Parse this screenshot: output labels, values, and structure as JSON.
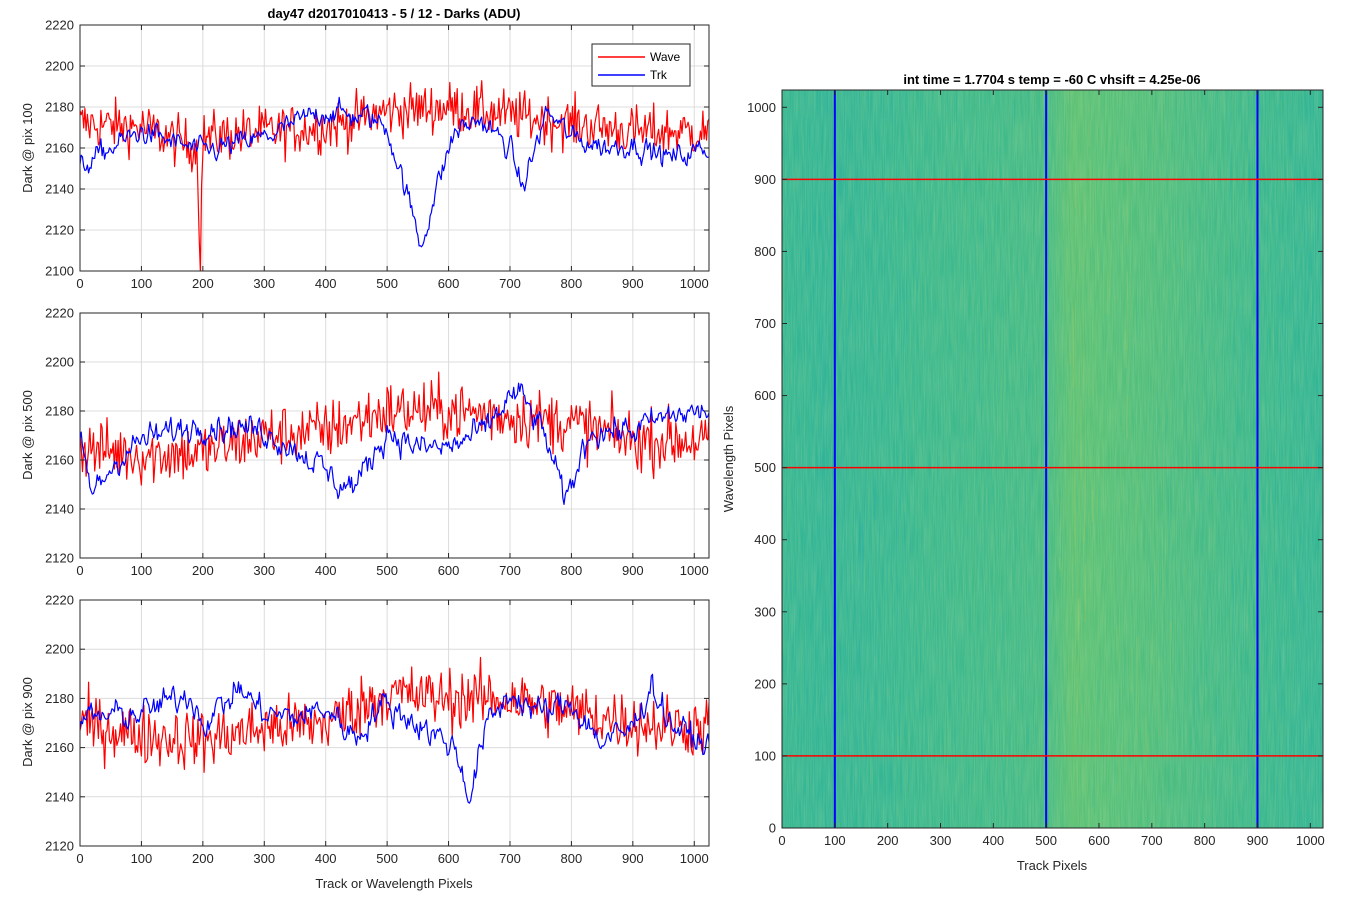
{
  "colors": {
    "wave": "#ff0000",
    "trk": "#0000ff",
    "grid": "#dcdcdc",
    "axes": "#262626"
  },
  "chart_data": [
    {
      "type": "line",
      "title": "day47 d2017010413 - 5 / 12 - Darks (ADU)",
      "xlabel": "",
      "ylabel": "Dark @ pix 100",
      "xlim": [
        0,
        1024
      ],
      "ylim": [
        2100,
        2220
      ],
      "xticks": [
        0,
        100,
        200,
        300,
        400,
        500,
        600,
        700,
        800,
        900,
        1000
      ],
      "yticks": [
        2100,
        2120,
        2140,
        2160,
        2180,
        2200,
        2220
      ],
      "grid": true,
      "legend": {
        "position": "top-right",
        "entries": [
          "Wave",
          "Trk"
        ]
      },
      "series": [
        {
          "name": "Wave",
          "color": "#ff0000",
          "x": [
            0,
            100,
            190,
            196,
            200,
            300,
            400,
            500,
            600,
            700,
            800,
            900,
            1024
          ],
          "y": [
            2172,
            2170,
            2160,
            2110,
            2165,
            2168,
            2170,
            2178,
            2180,
            2176,
            2172,
            2168,
            2168
          ]
        },
        {
          "name": "Trk",
          "color": "#0000ff",
          "x": [
            0,
            50,
            100,
            200,
            300,
            380,
            400,
            440,
            470,
            500,
            530,
            555,
            580,
            610,
            650,
            700,
            720,
            760,
            800,
            860,
            900,
            960,
            1024
          ],
          "y": [
            2150,
            2160,
            2168,
            2158,
            2165,
            2176,
            2178,
            2176,
            2175,
            2170,
            2140,
            2112,
            2140,
            2168,
            2174,
            2160,
            2140,
            2178,
            2165,
            2160,
            2162,
            2155,
            2160
          ]
        }
      ]
    },
    {
      "type": "line",
      "title": "",
      "xlabel": "",
      "ylabel": "Dark @ pix 500",
      "xlim": [
        0,
        1024
      ],
      "ylim": [
        2120,
        2220
      ],
      "xticks": [
        0,
        100,
        200,
        300,
        400,
        500,
        600,
        700,
        800,
        900,
        1000
      ],
      "yticks": [
        2120,
        2140,
        2160,
        2180,
        2200,
        2220
      ],
      "grid": true,
      "series": [
        {
          "name": "Wave",
          "color": "#ff0000",
          "x": [
            0,
            100,
            200,
            300,
            400,
            500,
            600,
            700,
            800,
            900,
            1024
          ],
          "y": [
            2165,
            2162,
            2163,
            2170,
            2172,
            2180,
            2180,
            2178,
            2175,
            2168,
            2168
          ]
        },
        {
          "name": "Trk",
          "color": "#0000ff",
          "x": [
            0,
            20,
            60,
            100,
            200,
            300,
            380,
            420,
            450,
            500,
            550,
            600,
            660,
            700,
            720,
            760,
            790,
            830,
            900,
            960,
            1024
          ],
          "y": [
            2168,
            2146,
            2160,
            2168,
            2175,
            2172,
            2160,
            2150,
            2150,
            2172,
            2165,
            2165,
            2172,
            2186,
            2186,
            2168,
            2142,
            2172,
            2172,
            2178,
            2180
          ]
        }
      ]
    },
    {
      "type": "line",
      "title": "",
      "xlabel": "Track or Wavelength Pixels",
      "ylabel": "Dark @ pix 900",
      "xlim": [
        0,
        1024
      ],
      "ylim": [
        2120,
        2220
      ],
      "xticks": [
        0,
        100,
        200,
        300,
        400,
        500,
        600,
        700,
        800,
        900,
        1000
      ],
      "yticks": [
        2120,
        2140,
        2160,
        2180,
        2200,
        2220
      ],
      "grid": true,
      "series": [
        {
          "name": "Wave",
          "color": "#ff0000",
          "x": [
            0,
            100,
            200,
            300,
            400,
            500,
            600,
            700,
            800,
            900,
            1024
          ],
          "y": [
            2170,
            2165,
            2163,
            2168,
            2170,
            2182,
            2180,
            2180,
            2175,
            2170,
            2168
          ]
        },
        {
          "name": "Trk",
          "color": "#0000ff",
          "x": [
            0,
            100,
            180,
            200,
            260,
            300,
            350,
            400,
            450,
            490,
            550,
            610,
            635,
            660,
            700,
            750,
            800,
            850,
            900,
            930,
            960,
            1024
          ],
          "y": [
            2172,
            2174,
            2182,
            2170,
            2184,
            2174,
            2172,
            2176,
            2164,
            2178,
            2170,
            2160,
            2140,
            2168,
            2182,
            2174,
            2178,
            2162,
            2168,
            2186,
            2170,
            2160
          ]
        }
      ]
    },
    {
      "type": "heatmap",
      "title": "int time = 1.7704 s    temp = -60 C    vhsift = 4.25e-06",
      "xlabel": "Track Pixels",
      "ylabel": "Wavelength Pixels",
      "xlim": [
        0,
        1024
      ],
      "ylim": [
        0,
        1024
      ],
      "xticks": [
        0,
        100,
        200,
        300,
        400,
        500,
        600,
        700,
        800,
        900,
        1000
      ],
      "yticks": [
        0,
        100,
        200,
        300,
        400,
        500,
        600,
        700,
        800,
        900,
        1000
      ],
      "column_markers": {
        "color": "#0000ff",
        "x": [
          100,
          500,
          900
        ]
      },
      "row_markers": {
        "color": "#ff0000",
        "y": [
          100,
          500,
          900
        ]
      },
      "column_profile": {
        "x": [
          0,
          80,
          100,
          200,
          300,
          400,
          500,
          550,
          620,
          700,
          800,
          900,
          1000,
          1024
        ],
        "level": [
          0.4,
          0.36,
          0.37,
          0.4,
          0.45,
          0.48,
          0.52,
          0.68,
          0.64,
          0.6,
          0.52,
          0.44,
          0.38,
          0.38
        ]
      },
      "colors": [
        "#1fa0c0",
        "#2eb49a",
        "#58c178",
        "#c8c64a"
      ]
    }
  ]
}
